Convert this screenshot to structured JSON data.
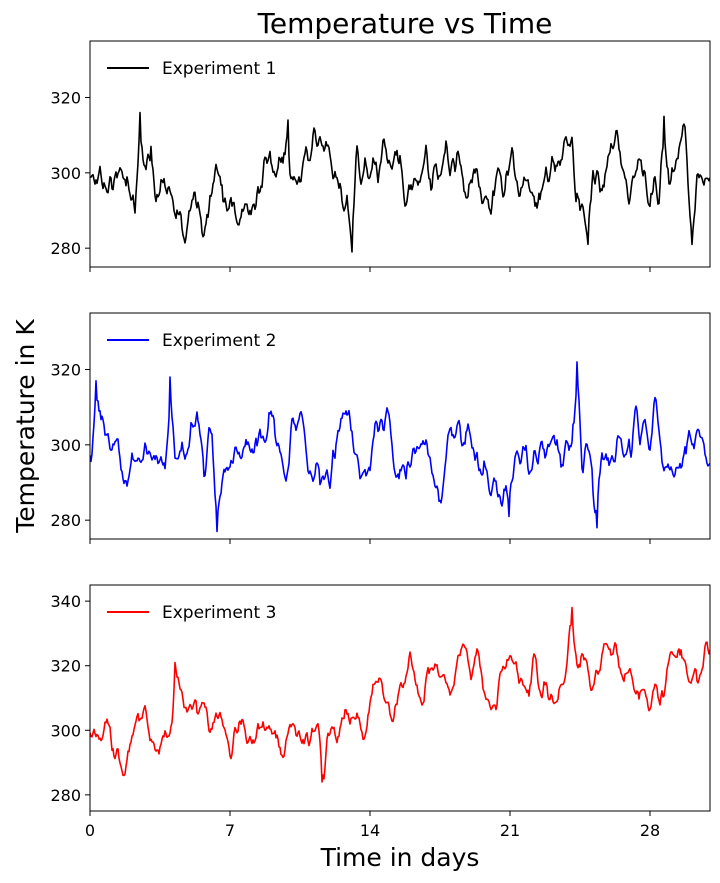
{
  "chart_data": {
    "type": "line",
    "title": "Temperature vs Time",
    "xlabel": "Time in days",
    "ylabel": "Temperature in K",
    "xlim": [
      0,
      31
    ],
    "x_ticks": [
      0,
      7,
      14,
      21,
      28
    ],
    "x_step_days": 0.05,
    "sharex": true,
    "legend_position": "upper-left",
    "grid": false,
    "panels": [
      {
        "series_name": "Experiment 1",
        "color": "#000000",
        "ylim": [
          275,
          335
        ],
        "y_ticks": [
          280,
          300,
          320
        ],
        "baseline": [
          [
            0,
            298
          ],
          [
            31,
            298
          ]
        ],
        "amplitude": 5.6,
        "seed": 11,
        "peaks": [
          [
            2.5,
            316
          ],
          [
            3.05,
            307
          ],
          [
            9.9,
            314
          ],
          [
            13.1,
            279
          ],
          [
            24.9,
            281
          ],
          [
            28.7,
            315
          ],
          [
            30.1,
            281
          ]
        ]
      },
      {
        "series_name": "Experiment 2",
        "color": "#0000ff",
        "ylim": [
          275,
          335
        ],
        "y_ticks": [
          280,
          300,
          320
        ],
        "baseline": [
          [
            0,
            298
          ],
          [
            31,
            298
          ]
        ],
        "amplitude": 5.2,
        "seed": 23,
        "peaks": [
          [
            0.3,
            317
          ],
          [
            4.0,
            318
          ],
          [
            6.35,
            277
          ],
          [
            20.95,
            281
          ],
          [
            24.35,
            322
          ],
          [
            25.35,
            278
          ]
        ]
      },
      {
        "series_name": "Experiment 3",
        "color": "#ff0000",
        "ylim": [
          275,
          345
        ],
        "y_ticks": [
          280,
          300,
          320,
          340
        ],
        "baseline": [
          [
            0,
            298
          ],
          [
            4,
            300
          ],
          [
            7,
            298
          ],
          [
            10,
            299
          ],
          [
            12.5,
            298
          ],
          [
            14,
            302
          ],
          [
            15.5,
            312
          ],
          [
            17.5,
            316
          ],
          [
            20,
            320
          ],
          [
            23,
            322
          ],
          [
            25,
            318
          ],
          [
            31,
            319
          ]
        ],
        "amplitude": 5.6,
        "seed": 37,
        "peaks": [
          [
            1.7,
            286
          ],
          [
            4.25,
            321
          ],
          [
            11.6,
            284
          ],
          [
            24.1,
            338
          ]
        ]
      }
    ]
  }
}
